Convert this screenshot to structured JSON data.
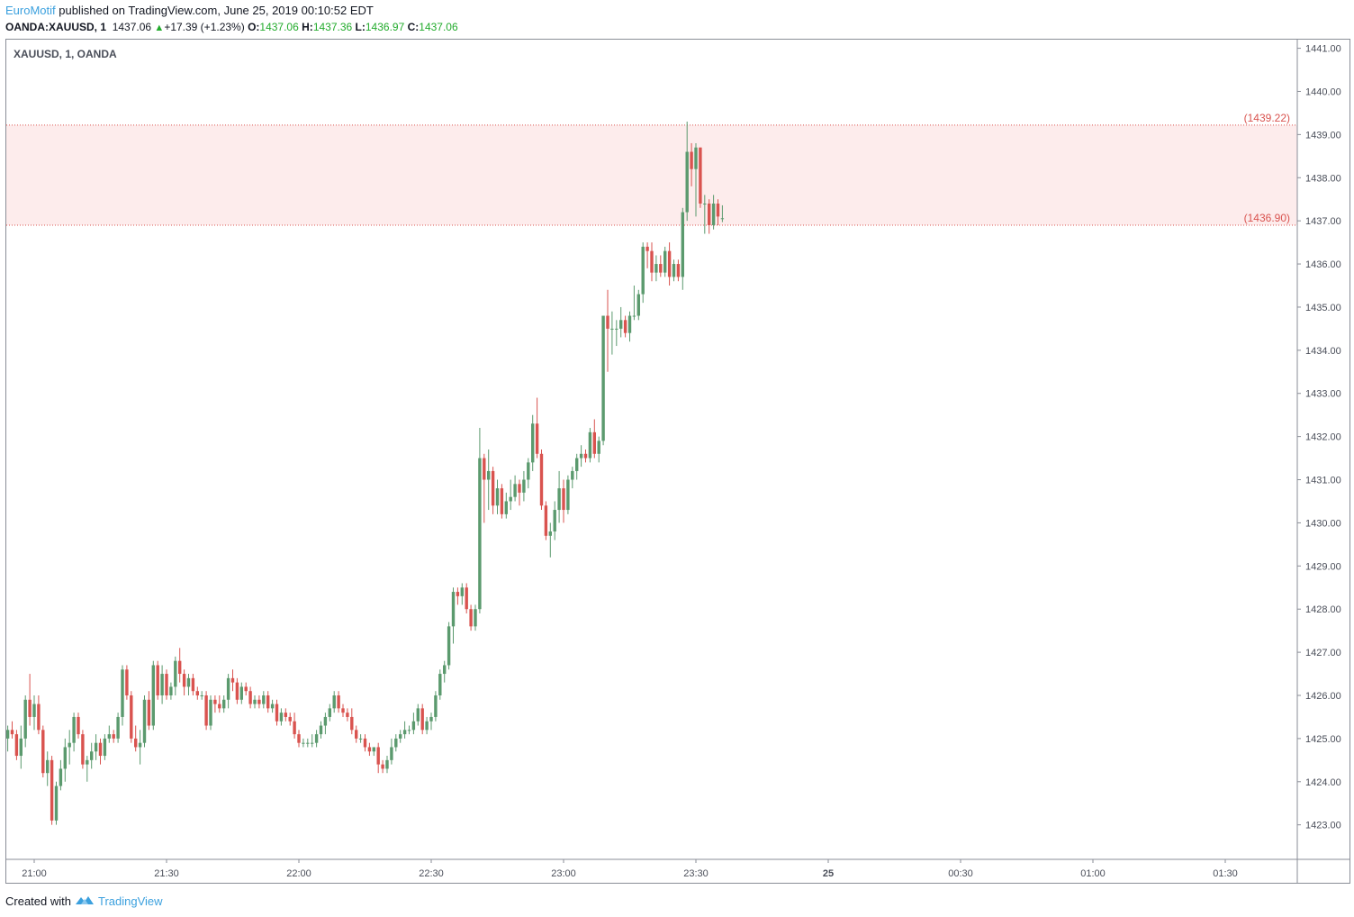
{
  "header": {
    "author": "EuroMotif",
    "published": "published on TradingView.com, June 25, 2019 00:10:52 EDT"
  },
  "ohlc": {
    "symbol": "OANDA:XAUUSD, 1",
    "last": "1437.06",
    "change": "+17.39 (+1.23%)",
    "open_label": "O:",
    "open": "1437.06",
    "high_label": "H:",
    "high": "1437.36",
    "low_label": "L:",
    "low": "1436.97",
    "close_label": "C:",
    "close": "1437.06"
  },
  "legend": {
    "symbol": "XAUUSD, 1, OANDA"
  },
  "footer": {
    "created_with": "Created with",
    "brand": "TradingView"
  },
  "colors": {
    "up": "#5b9a6e",
    "down": "#d9534f",
    "zone_fill": "#fdecec",
    "zone_line": "#d9534f",
    "axis_text": "#4a4e59"
  },
  "chart_data": {
    "type": "candlestick",
    "title": "XAUUSD, 1, OANDA",
    "ylim": [
      1422.2,
      1441.2
    ],
    "y_ticks": [
      1423,
      1424,
      1425,
      1426,
      1427,
      1428,
      1429,
      1430,
      1431,
      1432,
      1433,
      1434,
      1435,
      1436,
      1437,
      1438,
      1439,
      1440,
      1441
    ],
    "x_ticks": [
      {
        "label": "21:00",
        "minute": 0
      },
      {
        "label": "21:30",
        "minute": 30
      },
      {
        "label": "22:00",
        "minute": 60
      },
      {
        "label": "22:30",
        "minute": 90
      },
      {
        "label": "23:00",
        "minute": 120
      },
      {
        "label": "23:30",
        "minute": 150
      },
      {
        "label": "25",
        "minute": 180,
        "bold": true
      },
      {
        "label": "00:30",
        "minute": 210
      },
      {
        "label": "01:00",
        "minute": 240
      },
      {
        "label": "01:30",
        "minute": 270
      }
    ],
    "x_start_minute": -6,
    "zone": {
      "top": 1439.22,
      "bottom": 1436.9,
      "top_label": "(1439.22)",
      "bottom_label": "(1436.90)"
    },
    "candles": [
      [
        1425.0,
        1425.3,
        1424.7,
        1425.2
      ],
      [
        1425.2,
        1425.4,
        1425.0,
        1425.1
      ],
      [
        1425.1,
        1425.2,
        1424.5,
        1424.6
      ],
      [
        1424.6,
        1425.3,
        1424.3,
        1425.0
      ],
      [
        1425.0,
        1426.0,
        1424.8,
        1425.9
      ],
      [
        1425.9,
        1426.5,
        1425.3,
        1425.5
      ],
      [
        1425.5,
        1426.0,
        1425.2,
        1425.8
      ],
      [
        1425.8,
        1426.0,
        1425.1,
        1425.2
      ],
      [
        1425.2,
        1425.3,
        1424.1,
        1424.2
      ],
      [
        1424.2,
        1424.7,
        1423.9,
        1424.5
      ],
      [
        1424.5,
        1424.6,
        1423.0,
        1423.1
      ],
      [
        1423.1,
        1424.0,
        1423.0,
        1423.9
      ],
      [
        1423.9,
        1424.5,
        1423.8,
        1424.3
      ],
      [
        1424.3,
        1425.0,
        1424.0,
        1424.8
      ],
      [
        1424.8,
        1425.2,
        1424.4,
        1424.9
      ],
      [
        1424.9,
        1425.6,
        1424.7,
        1425.5
      ],
      [
        1425.5,
        1425.6,
        1425.0,
        1425.1
      ],
      [
        1425.1,
        1425.2,
        1424.3,
        1424.4
      ],
      [
        1424.4,
        1424.6,
        1424.0,
        1424.5
      ],
      [
        1424.5,
        1424.9,
        1424.3,
        1424.7
      ],
      [
        1424.7,
        1425.1,
        1424.5,
        1424.9
      ],
      [
        1424.9,
        1425.0,
        1424.4,
        1424.6
      ],
      [
        1424.6,
        1425.1,
        1424.5,
        1425.0
      ],
      [
        1425.0,
        1425.3,
        1424.9,
        1425.1
      ],
      [
        1425.1,
        1425.2,
        1424.9,
        1425.0
      ],
      [
        1425.0,
        1425.6,
        1424.9,
        1425.5
      ],
      [
        1425.5,
        1426.7,
        1425.3,
        1426.6
      ],
      [
        1426.6,
        1426.7,
        1425.9,
        1426.0
      ],
      [
        1426.0,
        1426.1,
        1424.9,
        1425.0
      ],
      [
        1425.0,
        1425.3,
        1424.7,
        1424.8
      ],
      [
        1424.8,
        1425.2,
        1424.4,
        1424.9
      ],
      [
        1424.9,
        1426.0,
        1424.8,
        1425.9
      ],
      [
        1425.9,
        1426.1,
        1425.2,
        1425.3
      ],
      [
        1425.3,
        1426.8,
        1425.2,
        1426.7
      ],
      [
        1426.7,
        1426.8,
        1425.9,
        1426.0
      ],
      [
        1426.0,
        1426.7,
        1425.8,
        1426.5
      ],
      [
        1426.5,
        1426.6,
        1425.9,
        1426.0
      ],
      [
        1426.0,
        1426.3,
        1425.9,
        1426.2
      ],
      [
        1426.2,
        1426.9,
        1426.0,
        1426.8
      ],
      [
        1426.8,
        1427.1,
        1426.3,
        1426.5
      ],
      [
        1426.5,
        1426.6,
        1426.0,
        1426.2
      ],
      [
        1426.2,
        1426.5,
        1426.0,
        1426.4
      ],
      [
        1426.4,
        1426.5,
        1426.0,
        1426.1
      ],
      [
        1426.1,
        1426.2,
        1425.9,
        1426.0
      ],
      [
        1426.0,
        1426.1,
        1425.9,
        1426.0
      ],
      [
        1426.0,
        1426.1,
        1425.2,
        1425.3
      ],
      [
        1425.3,
        1426.0,
        1425.2,
        1425.9
      ],
      [
        1425.9,
        1426.0,
        1425.6,
        1425.8
      ],
      [
        1425.8,
        1426.0,
        1425.6,
        1425.7
      ],
      [
        1425.7,
        1426.0,
        1425.6,
        1425.9
      ],
      [
        1425.9,
        1426.5,
        1425.7,
        1426.4
      ],
      [
        1426.4,
        1426.6,
        1426.1,
        1426.3
      ],
      [
        1426.3,
        1426.4,
        1425.8,
        1425.9
      ],
      [
        1425.9,
        1426.3,
        1425.8,
        1426.2
      ],
      [
        1426.2,
        1426.3,
        1426.0,
        1426.1
      ],
      [
        1426.1,
        1426.2,
        1425.7,
        1425.8
      ],
      [
        1425.8,
        1426.0,
        1425.7,
        1425.9
      ],
      [
        1425.9,
        1426.0,
        1425.7,
        1425.8
      ],
      [
        1425.8,
        1426.1,
        1425.7,
        1426.0
      ],
      [
        1426.0,
        1426.1,
        1425.6,
        1425.7
      ],
      [
        1425.7,
        1425.9,
        1425.6,
        1425.8
      ],
      [
        1425.8,
        1425.9,
        1425.3,
        1425.4
      ],
      [
        1425.4,
        1425.7,
        1425.3,
        1425.6
      ],
      [
        1425.6,
        1425.7,
        1425.4,
        1425.5
      ],
      [
        1425.5,
        1425.6,
        1425.3,
        1425.4
      ],
      [
        1425.4,
        1425.6,
        1425.0,
        1425.1
      ],
      [
        1425.1,
        1425.2,
        1424.8,
        1424.9
      ],
      [
        1424.9,
        1425.0,
        1424.8,
        1424.9
      ],
      [
        1424.9,
        1425.0,
        1424.8,
        1424.9
      ],
      [
        1424.9,
        1425.1,
        1424.8,
        1424.9
      ],
      [
        1424.9,
        1425.2,
        1424.8,
        1425.1
      ],
      [
        1425.1,
        1425.4,
        1425.0,
        1425.3
      ],
      [
        1425.3,
        1425.6,
        1425.1,
        1425.5
      ],
      [
        1425.5,
        1425.8,
        1425.4,
        1425.7
      ],
      [
        1425.7,
        1426.1,
        1425.6,
        1426.0
      ],
      [
        1426.0,
        1426.1,
        1425.6,
        1425.7
      ],
      [
        1425.7,
        1425.8,
        1425.5,
        1425.6
      ],
      [
        1425.6,
        1425.7,
        1425.4,
        1425.5
      ],
      [
        1425.5,
        1425.7,
        1425.1,
        1425.2
      ],
      [
        1425.2,
        1425.3,
        1424.9,
        1425.0
      ],
      [
        1425.0,
        1425.1,
        1424.9,
        1425.0
      ],
      [
        1425.0,
        1425.1,
        1424.7,
        1424.8
      ],
      [
        1424.8,
        1424.9,
        1424.6,
        1424.7
      ],
      [
        1424.7,
        1424.8,
        1424.6,
        1424.8
      ],
      [
        1424.8,
        1424.9,
        1424.2,
        1424.4
      ],
      [
        1424.4,
        1424.5,
        1424.2,
        1424.3
      ],
      [
        1424.3,
        1424.6,
        1424.2,
        1424.5
      ],
      [
        1424.5,
        1425.0,
        1424.4,
        1424.8
      ],
      [
        1424.8,
        1425.1,
        1424.7,
        1425.0
      ],
      [
        1425.0,
        1425.2,
        1424.9,
        1425.1
      ],
      [
        1425.1,
        1425.4,
        1425.0,
        1425.2
      ],
      [
        1425.2,
        1425.3,
        1425.1,
        1425.2
      ],
      [
        1425.2,
        1425.6,
        1425.1,
        1425.4
      ],
      [
        1425.4,
        1425.8,
        1425.3,
        1425.7
      ],
      [
        1425.7,
        1425.8,
        1425.1,
        1425.2
      ],
      [
        1425.2,
        1425.5,
        1425.1,
        1425.4
      ],
      [
        1425.4,
        1425.6,
        1425.2,
        1425.5
      ],
      [
        1425.5,
        1426.1,
        1425.4,
        1426.0
      ],
      [
        1426.0,
        1426.6,
        1425.9,
        1426.5
      ],
      [
        1426.5,
        1426.8,
        1426.3,
        1426.7
      ],
      [
        1426.7,
        1427.7,
        1426.6,
        1427.6
      ],
      [
        1427.6,
        1428.5,
        1427.2,
        1428.4
      ],
      [
        1428.4,
        1428.5,
        1428.1,
        1428.3
      ],
      [
        1428.3,
        1428.6,
        1428.1,
        1428.5
      ],
      [
        1428.5,
        1428.6,
        1427.9,
        1428.0
      ],
      [
        1428.0,
        1428.1,
        1427.5,
        1427.6
      ],
      [
        1427.6,
        1428.1,
        1427.5,
        1428.0
      ],
      [
        1428.0,
        1432.2,
        1427.9,
        1431.5
      ],
      [
        1431.5,
        1431.6,
        1430.0,
        1431.0
      ],
      [
        1431.0,
        1431.7,
        1430.3,
        1431.2
      ],
      [
        1431.2,
        1431.3,
        1430.2,
        1430.4
      ],
      [
        1430.4,
        1431.0,
        1430.2,
        1430.8
      ],
      [
        1430.8,
        1430.9,
        1430.1,
        1430.2
      ],
      [
        1430.2,
        1430.7,
        1430.1,
        1430.5
      ],
      [
        1430.5,
        1431.0,
        1430.3,
        1430.6
      ],
      [
        1430.6,
        1431.1,
        1430.5,
        1430.9
      ],
      [
        1430.9,
        1431.0,
        1430.4,
        1430.7
      ],
      [
        1430.7,
        1431.2,
        1430.5,
        1431.0
      ],
      [
        1431.0,
        1431.5,
        1430.8,
        1431.4
      ],
      [
        1431.4,
        1432.5,
        1431.2,
        1432.3
      ],
      [
        1432.3,
        1432.9,
        1431.5,
        1431.6
      ],
      [
        1431.6,
        1431.7,
        1430.3,
        1430.4
      ],
      [
        1430.4,
        1430.5,
        1429.6,
        1429.7
      ],
      [
        1429.7,
        1430.0,
        1429.2,
        1429.8
      ],
      [
        1429.8,
        1430.5,
        1429.6,
        1430.3
      ],
      [
        1430.3,
        1431.2,
        1430.0,
        1430.8
      ],
      [
        1430.8,
        1431.0,
        1430.0,
        1430.3
      ],
      [
        1430.3,
        1431.1,
        1430.2,
        1431.0
      ],
      [
        1431.0,
        1431.3,
        1430.8,
        1431.2
      ],
      [
        1431.2,
        1431.6,
        1431.0,
        1431.5
      ],
      [
        1431.5,
        1431.8,
        1431.3,
        1431.6
      ],
      [
        1431.6,
        1431.7,
        1431.4,
        1431.5
      ],
      [
        1431.5,
        1432.2,
        1431.4,
        1432.1
      ],
      [
        1432.1,
        1432.4,
        1431.5,
        1431.6
      ],
      [
        1431.6,
        1432.0,
        1431.4,
        1431.9
      ],
      [
        1431.9,
        1434.8,
        1431.8,
        1434.8
      ],
      [
        1434.8,
        1435.4,
        1433.5,
        1434.5
      ],
      [
        1434.5,
        1434.9,
        1433.9,
        1434.5
      ],
      [
        1434.5,
        1434.7,
        1434.1,
        1434.5
      ],
      [
        1434.5,
        1435.0,
        1434.3,
        1434.7
      ],
      [
        1434.7,
        1434.8,
        1434.3,
        1434.4
      ],
      [
        1434.4,
        1434.9,
        1434.2,
        1434.8
      ],
      [
        1434.8,
        1435.5,
        1434.7,
        1434.8
      ],
      [
        1434.8,
        1435.4,
        1434.7,
        1435.3
      ],
      [
        1435.3,
        1436.5,
        1435.1,
        1436.4
      ],
      [
        1436.4,
        1436.5,
        1435.9,
        1436.3
      ],
      [
        1436.3,
        1436.5,
        1435.6,
        1435.8
      ],
      [
        1435.8,
        1436.2,
        1435.6,
        1436.0
      ],
      [
        1436.0,
        1436.2,
        1435.7,
        1435.8
      ],
      [
        1435.8,
        1436.4,
        1435.7,
        1436.3
      ],
      [
        1436.3,
        1436.5,
        1435.5,
        1435.7
      ],
      [
        1435.7,
        1436.1,
        1435.6,
        1436.0
      ],
      [
        1436.0,
        1436.1,
        1435.6,
        1435.7
      ],
      [
        1435.7,
        1437.3,
        1435.4,
        1437.2
      ],
      [
        1437.2,
        1439.3,
        1437.0,
        1438.6
      ],
      [
        1438.6,
        1438.8,
        1437.8,
        1438.2
      ],
      [
        1438.2,
        1438.8,
        1437.1,
        1438.7
      ],
      [
        1438.7,
        1438.7,
        1437.3,
        1437.4
      ],
      [
        1437.4,
        1437.6,
        1436.7,
        1437.4
      ],
      [
        1437.4,
        1437.5,
        1436.7,
        1436.9
      ],
      [
        1436.9,
        1437.6,
        1436.8,
        1437.4
      ],
      [
        1437.4,
        1437.5,
        1436.9,
        1437.1
      ],
      [
        1437.06,
        1437.36,
        1436.97,
        1437.06
      ]
    ]
  }
}
